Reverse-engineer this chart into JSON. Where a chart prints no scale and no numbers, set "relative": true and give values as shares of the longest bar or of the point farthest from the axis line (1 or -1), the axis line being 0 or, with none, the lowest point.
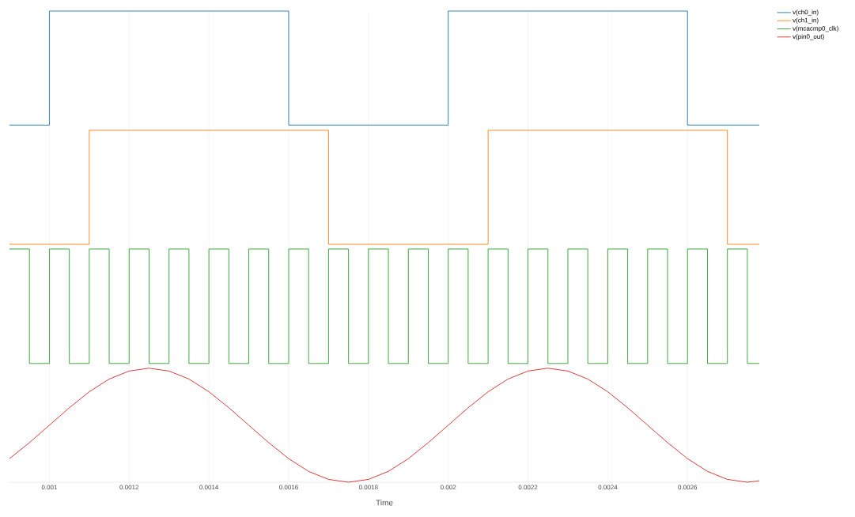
{
  "chart_data": {
    "type": "line",
    "relative": true,
    "xlabel": "Time",
    "grid": "x",
    "legend": "top right",
    "marker": "none",
    "xlim": [
      0.0009,
      0.00278
    ],
    "xticks": [
      0.001,
      0.0012,
      0.0014,
      0.0016,
      0.0018,
      0.002,
      0.0022,
      0.0024,
      0.0026
    ],
    "series": [
      {
        "name": "v(ch0_in)",
        "type": "step",
        "color": "#1f77b4",
        "x": [
          0.0009,
          0.001,
          0.0016,
          0.002,
          0.0026,
          0.00278
        ],
        "values": [
          0.758,
          1,
          0.758,
          1,
          0.758,
          0.758
        ]
      },
      {
        "name": "v(ch1_in)",
        "type": "step",
        "color": "#ff7f0e",
        "x": [
          0.0009,
          0.0011,
          0.0017,
          0.0021,
          0.0027,
          0.00278
        ],
        "values": [
          0.505,
          0.747,
          0.505,
          0.747,
          0.505,
          0.505
        ]
      },
      {
        "name": "v(mcacmp0_clk)",
        "type": "step",
        "color": "#2ca02c",
        "x": [
          0.0009,
          0.00095,
          0.001,
          0.00105,
          0.0011,
          0.00115,
          0.0012,
          0.00125,
          0.0013,
          0.00135,
          0.0014,
          0.00145,
          0.0015,
          0.00155,
          0.0016,
          0.00165,
          0.0017,
          0.00175,
          0.0018,
          0.00185,
          0.0019,
          0.00195,
          0.002,
          0.00205,
          0.0021,
          0.00215,
          0.0022,
          0.00225,
          0.0023,
          0.00235,
          0.0024,
          0.00245,
          0.0025,
          0.00255,
          0.0026,
          0.00265,
          0.0027,
          0.00275,
          0.00278
        ],
        "values": [
          0.495,
          0.252,
          0.495,
          0.252,
          0.495,
          0.252,
          0.495,
          0.252,
          0.495,
          0.252,
          0.495,
          0.252,
          0.495,
          0.252,
          0.495,
          0.252,
          0.495,
          0.252,
          0.495,
          0.252,
          0.495,
          0.252,
          0.495,
          0.252,
          0.495,
          0.252,
          0.495,
          0.252,
          0.495,
          0.252,
          0.495,
          0.252,
          0.495,
          0.252,
          0.495,
          0.252,
          0.495,
          0.252,
          0.252
        ]
      },
      {
        "name": "v(pin0_out)",
        "type": "line",
        "color": "#d62728",
        "x": [
          0.0009,
          0.00095,
          0.001,
          0.00105,
          0.0011,
          0.00115,
          0.0012,
          0.00125,
          0.0013,
          0.00135,
          0.0014,
          0.00145,
          0.0015,
          0.00155,
          0.0016,
          0.00165,
          0.0017,
          0.00175,
          0.0018,
          0.00185,
          0.0019,
          0.00195,
          0.002,
          0.00205,
          0.0021,
          0.00215,
          0.0022,
          0.00225,
          0.0023,
          0.00235,
          0.0024,
          0.00245,
          0.0025,
          0.00255,
          0.0026,
          0.00265,
          0.0027,
          0.00275,
          0.00278
        ],
        "values": [
          0.05,
          0.084,
          0.121,
          0.158,
          0.192,
          0.219,
          0.236,
          0.242,
          0.236,
          0.219,
          0.192,
          0.158,
          0.121,
          0.084,
          0.05,
          0.023,
          0.006,
          0,
          0.006,
          0.023,
          0.05,
          0.084,
          0.121,
          0.158,
          0.192,
          0.219,
          0.236,
          0.242,
          0.236,
          0.219,
          0.192,
          0.158,
          0.121,
          0.084,
          0.05,
          0.023,
          0.006,
          0,
          0.003
        ]
      }
    ]
  }
}
